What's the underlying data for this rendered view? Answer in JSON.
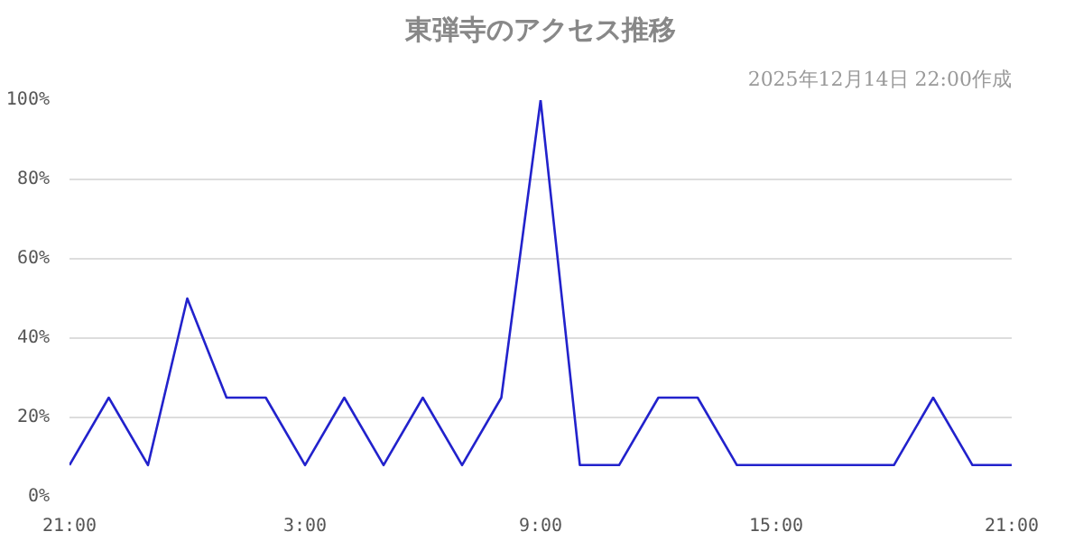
{
  "chart_data": {
    "type": "line",
    "title": "東弾寺のアクセス推移",
    "subtitle": "2025年12月14日 22:00作成",
    "categories": [
      "21:00",
      null,
      null,
      null,
      null,
      null,
      "3:00",
      null,
      null,
      null,
      null,
      null,
      "9:00",
      null,
      null,
      null,
      null,
      null,
      "15:00",
      null,
      null,
      null,
      null,
      null,
      "21:00"
    ],
    "series": [
      {
        "color": "#2222cc",
        "values": [
          8,
          25,
          8,
          50,
          25,
          25,
          8,
          25,
          8,
          25,
          8,
          25,
          100,
          8,
          8,
          25,
          25,
          8,
          8,
          8,
          8,
          8,
          25,
          8,
          8
        ]
      }
    ],
    "ylim": [
      0,
      100
    ],
    "yticks": [
      {
        "value": 0,
        "label": "0%"
      },
      {
        "value": 20,
        "label": "20%"
      },
      {
        "value": 40,
        "label": "40%"
      },
      {
        "value": 60,
        "label": "60%"
      },
      {
        "value": 80,
        "label": "80%"
      },
      {
        "value": 100,
        "label": "100%"
      }
    ],
    "grid": "y",
    "marker": "none",
    "line_style": "solid"
  }
}
